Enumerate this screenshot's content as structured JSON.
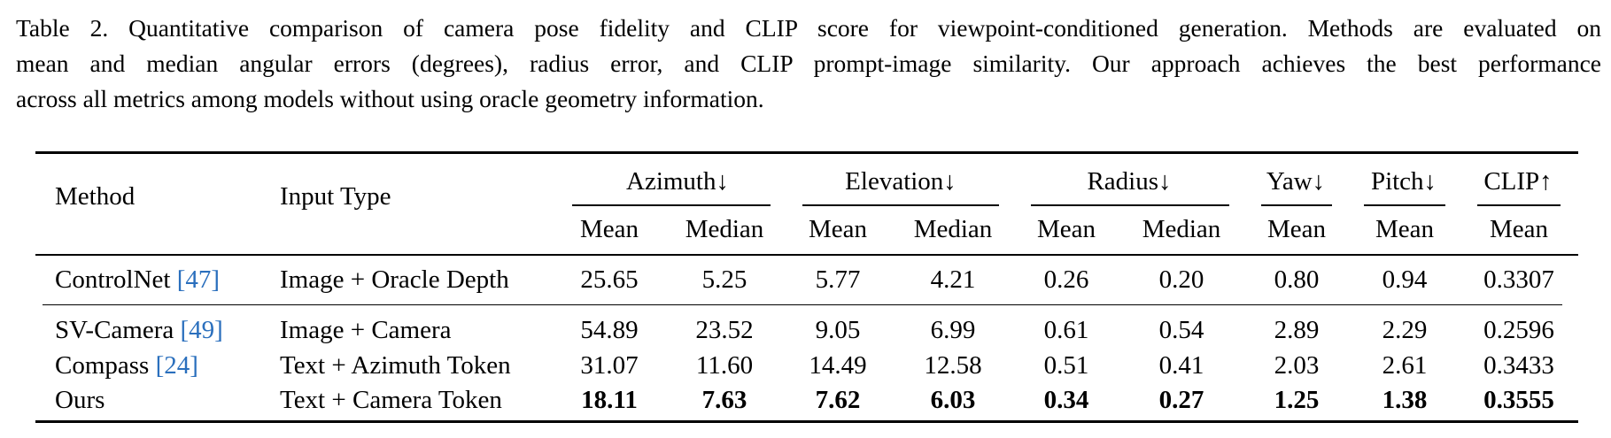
{
  "caption": {
    "lines": [
      "Table 2. Quantitative comparison of camera pose fidelity and CLIP score for viewpoint-conditioned generation. Methods are evaluated on",
      "mean and median angular errors (degrees), radius error, and CLIP prompt-image similarity.  Our approach achieves the best performance",
      "across all metrics among models without using oracle geometry information."
    ]
  },
  "table": {
    "headers": {
      "method": "Method",
      "input_type": "Input Type",
      "groups": [
        "Azimuth↓",
        "Elevation↓",
        "Radius↓",
        "Yaw↓",
        "Pitch↓",
        "CLIP↑"
      ],
      "sub": [
        "Mean",
        "Median",
        "Mean",
        "Median",
        "Mean",
        "Median",
        "Mean",
        "Mean",
        "Mean"
      ]
    },
    "rows": [
      {
        "method": "ControlNet",
        "cite": "[47]",
        "input": "Image + Oracle Depth",
        "values": [
          "25.65",
          "5.25",
          "5.77",
          "4.21",
          "0.26",
          "0.20",
          "0.80",
          "0.94",
          "0.3307"
        ]
      },
      {
        "method": "SV-Camera",
        "cite": "[49]",
        "input": "Image + Camera",
        "values": [
          "54.89",
          "23.52",
          "9.05",
          "6.99",
          "0.61",
          "0.54",
          "2.89",
          "2.29",
          "0.2596"
        ]
      },
      {
        "method": "Compass",
        "cite": "[24]",
        "input": "Text + Azimuth Token",
        "values": [
          "31.07",
          "11.60",
          "14.49",
          "12.58",
          "0.51",
          "0.41",
          "2.03",
          "2.61",
          "0.3433"
        ]
      },
      {
        "method": "Ours",
        "cite": "",
        "input": "Text + Camera Token",
        "values": [
          "18.11",
          "7.63",
          "7.62",
          "6.03",
          "0.34",
          "0.27",
          "1.25",
          "1.38",
          "0.3555"
        ]
      }
    ]
  }
}
